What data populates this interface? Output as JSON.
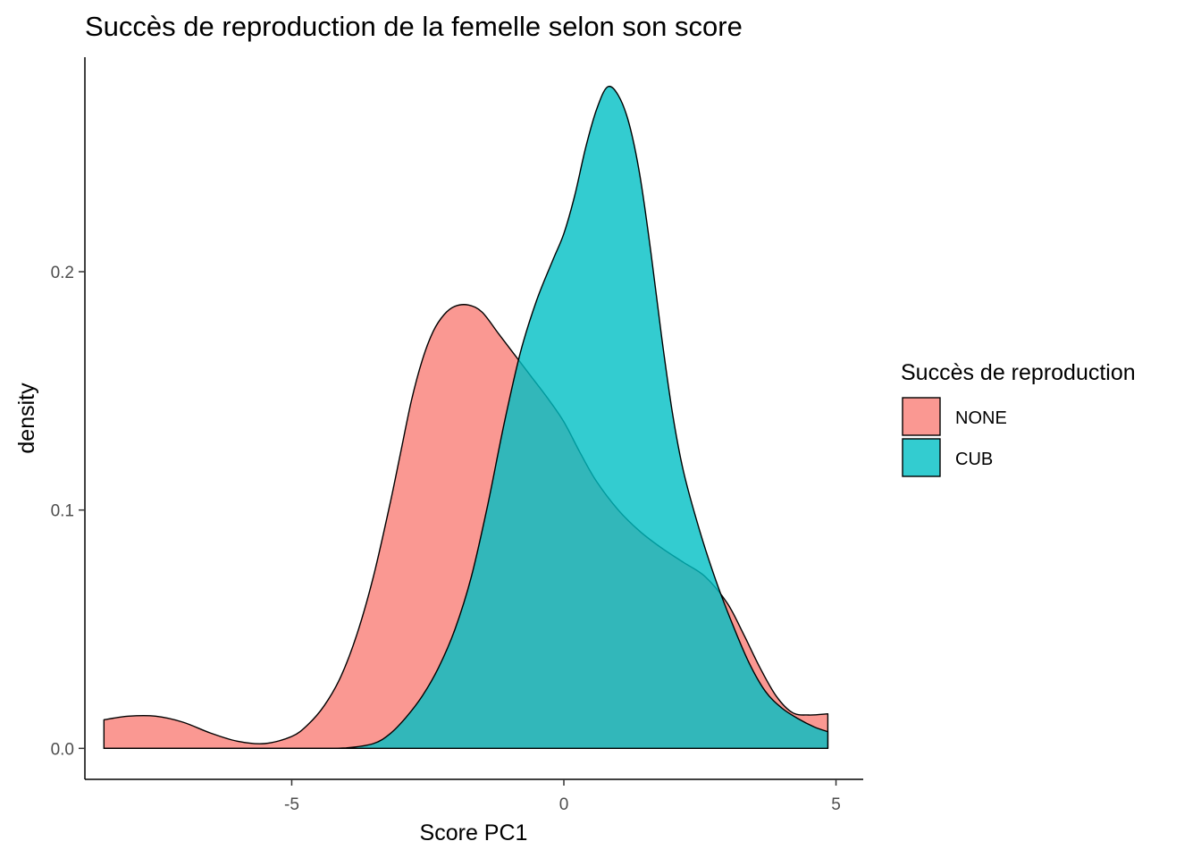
{
  "chart_data": {
    "type": "area",
    "title": "Succès de reproduction de la femelle selon son score",
    "xlabel": "Score PC1",
    "ylabel": "density",
    "xlim": [
      -8.8,
      5.5
    ],
    "ylim": [
      -0.013,
      0.29
    ],
    "x_ticks": [
      -5,
      0,
      5
    ],
    "x_tick_labels": [
      "-5",
      "0",
      "5"
    ],
    "y_ticks": [
      0.0,
      0.1,
      0.2
    ],
    "y_tick_labels": [
      "0.0",
      "0.1",
      "0.2"
    ],
    "grid": false,
    "legend": {
      "title": "Succès de reproduction",
      "position": "right"
    },
    "series": [
      {
        "name": "NONE",
        "color": "#F8766D",
        "opacity": 0.75,
        "x": [
          -8.45,
          -8.0,
          -7.5,
          -7.0,
          -6.5,
          -6.0,
          -5.5,
          -5.0,
          -4.7,
          -4.4,
          -4.1,
          -3.8,
          -3.5,
          -3.2,
          -3.0,
          -2.8,
          -2.6,
          -2.4,
          -2.2,
          -2.0,
          -1.75,
          -1.5,
          -1.2,
          -0.9,
          -0.6,
          -0.3,
          0.0,
          0.3,
          0.6,
          1.0,
          1.4,
          1.8,
          2.2,
          2.6,
          3.0,
          3.3,
          3.6,
          3.9,
          4.2,
          4.5,
          4.85
        ],
        "y": [
          0.012,
          0.0135,
          0.0135,
          0.011,
          0.0065,
          0.003,
          0.002,
          0.005,
          0.01,
          0.018,
          0.03,
          0.048,
          0.072,
          0.102,
          0.124,
          0.146,
          0.163,
          0.175,
          0.182,
          0.1855,
          0.186,
          0.183,
          0.174,
          0.165,
          0.156,
          0.147,
          0.137,
          0.124,
          0.112,
          0.1,
          0.091,
          0.084,
          0.078,
          0.072,
          0.061,
          0.048,
          0.034,
          0.022,
          0.015,
          0.014,
          0.0145
        ]
      },
      {
        "name": "CUB",
        "color": "#00BFC4",
        "opacity": 0.8,
        "x": [
          -8.45,
          -6.0,
          -4.5,
          -4.0,
          -3.5,
          -3.2,
          -2.9,
          -2.6,
          -2.3,
          -2.0,
          -1.7,
          -1.4,
          -1.1,
          -0.8,
          -0.5,
          -0.2,
          0.0,
          0.2,
          0.4,
          0.6,
          0.8,
          1.0,
          1.2,
          1.4,
          1.6,
          1.8,
          2.0,
          2.2,
          2.5,
          2.8,
          3.1,
          3.4,
          3.7,
          4.0,
          4.3,
          4.6,
          4.85
        ],
        "y": [
          0.0,
          0.0,
          0.0,
          0.0002,
          0.002,
          0.006,
          0.013,
          0.022,
          0.034,
          0.05,
          0.072,
          0.102,
          0.136,
          0.166,
          0.188,
          0.205,
          0.216,
          0.232,
          0.252,
          0.268,
          0.2775,
          0.274,
          0.262,
          0.24,
          0.208,
          0.172,
          0.14,
          0.116,
          0.091,
          0.07,
          0.052,
          0.036,
          0.024,
          0.017,
          0.0125,
          0.009,
          0.007
        ]
      }
    ]
  }
}
